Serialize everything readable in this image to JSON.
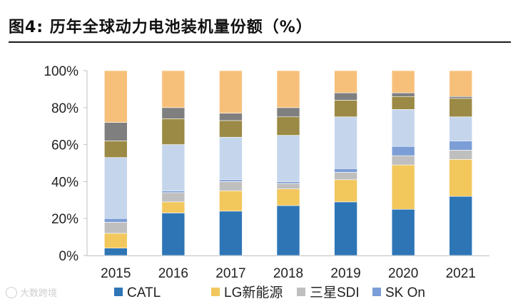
{
  "header": {
    "title": "图4:  历年全球动力电池装机量份额（%）"
  },
  "watermark": {
    "text": "大数跨境"
  },
  "colors": {
    "CATL": "#2e75b6",
    "LG新能源": "#f2c75c",
    "三星SDI": "#bfbfbf",
    "SK On": "#7b9ed6",
    "light_blue": "#c5d6ec",
    "olive": "#9b8a45",
    "gray": "#7f7f7f",
    "orange": "#f7c07a"
  },
  "chart_data": {
    "type": "bar",
    "stacked": true,
    "title": "历年全球动力电池装机量份额（%）",
    "xlabel": "",
    "ylabel": "",
    "ylim": [
      0,
      100
    ],
    "yticks": [
      "0%",
      "20%",
      "40%",
      "60%",
      "80%",
      "100%"
    ],
    "categories": [
      "2015",
      "2016",
      "2017",
      "2018",
      "2019",
      "2020",
      "2021"
    ],
    "series": [
      {
        "name": "CATL",
        "in_legend": true,
        "values": [
          4,
          23,
          24,
          27,
          29,
          25,
          32
        ]
      },
      {
        "name": "LG新能源",
        "in_legend": true,
        "values": [
          8,
          6,
          11,
          9,
          12,
          24,
          20
        ]
      },
      {
        "name": "三星SDI",
        "in_legend": true,
        "values": [
          6,
          5,
          5,
          3,
          4,
          5,
          5
        ]
      },
      {
        "name": "SK On",
        "in_legend": true,
        "values": [
          2,
          1,
          1,
          1,
          2,
          5,
          5
        ]
      },
      {
        "name": "light_blue",
        "in_legend": false,
        "values": [
          33,
          25,
          23,
          25,
          28,
          20,
          13
        ]
      },
      {
        "name": "olive",
        "in_legend": false,
        "values": [
          9,
          14,
          9,
          10,
          9,
          7,
          10
        ]
      },
      {
        "name": "gray",
        "in_legend": false,
        "values": [
          10,
          6,
          4,
          5,
          4,
          2,
          1
        ]
      },
      {
        "name": "orange",
        "in_legend": false,
        "values": [
          28,
          20,
          23,
          20,
          12,
          12,
          14
        ]
      }
    ],
    "legend": [
      "CATL",
      "LG新能源",
      "三星SDI",
      "SK On"
    ],
    "legend_position": "bottom"
  }
}
